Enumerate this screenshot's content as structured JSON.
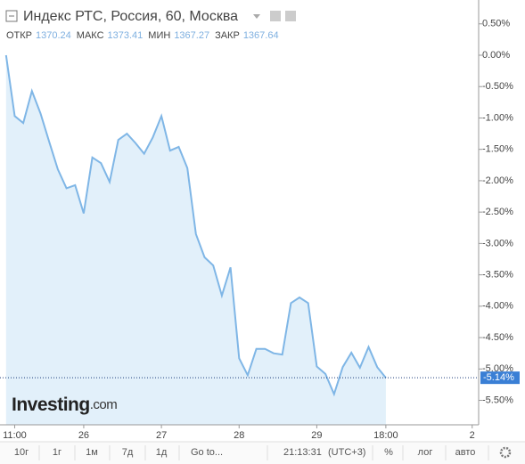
{
  "header": {
    "title": "Индекс РТС, Россия, 60, Москва",
    "ohlc": [
      {
        "label": "ОТКР",
        "value": 1370.24
      },
      {
        "label": "МАКС",
        "value": 1373.41
      },
      {
        "label": "МИН",
        "value": 1367.27
      },
      {
        "label": "ЗАКР",
        "value": 1367.64
      }
    ]
  },
  "logo": [
    "Investing",
    ".com"
  ],
  "chart_data": {
    "type": "area",
    "color": "#7fb6e6",
    "fill": "#e2f0fa",
    "values": [
      0.0,
      -0.97,
      -1.08,
      -0.57,
      -0.93,
      -1.38,
      -1.82,
      -2.12,
      -2.07,
      -2.52,
      -1.63,
      -1.72,
      -2.02,
      -1.35,
      -1.25,
      -1.4,
      -1.57,
      -1.31,
      -0.97,
      -1.52,
      -1.46,
      -1.8,
      -2.85,
      -3.22,
      -3.35,
      -3.83,
      -3.38,
      -4.83,
      -5.1,
      -4.68,
      -4.68,
      -4.75,
      -4.77,
      -3.95,
      -3.86,
      -3.95,
      -4.96,
      -5.08,
      -5.4,
      -4.97,
      -4.74,
      -4.98,
      -4.65,
      -4.97,
      -5.14
    ],
    "last_label": "-5.14%",
    "xlim": [
      -0.7,
      54.75
    ],
    "xticks": [
      {
        "value": 1,
        "label": "11:00"
      },
      {
        "value": 9,
        "label": "26"
      },
      {
        "value": 18,
        "label": "27"
      },
      {
        "value": 27,
        "label": "28"
      },
      {
        "value": 36,
        "label": "29"
      },
      {
        "value": 44,
        "label": "18:00"
      },
      {
        "value": 54,
        "label": "2"
      }
    ],
    "ylim": [
      -5.89,
      0.88
    ],
    "yticks": [
      {
        "value": 0.5,
        "label": "0.50%"
      },
      {
        "value": 0,
        "label": "0.00%"
      },
      {
        "value": -0.5,
        "label": "-0.50%"
      },
      {
        "value": -1,
        "label": "-1.00%"
      },
      {
        "value": -1.5,
        "label": "-1.50%"
      },
      {
        "value": -2,
        "label": "-2.00%"
      },
      {
        "value": -2.5,
        "label": "-2.50%"
      },
      {
        "value": -3,
        "label": "-3.00%"
      },
      {
        "value": -3.5,
        "label": "-3.50%"
      },
      {
        "value": -4,
        "label": "-4.00%"
      },
      {
        "value": -4.5,
        "label": "-4.50%"
      },
      {
        "value": -5,
        "label": "-5.00%"
      },
      {
        "value": -5.5,
        "label": "-5.50%"
      }
    ]
  },
  "toolbar": {
    "periods": [
      "10г",
      "1г",
      "1м",
      "7д",
      "1д"
    ],
    "goto": "Go to...",
    "time": "21:13:31",
    "tz": "(UTC+3)",
    "percent": "%",
    "log": "лог",
    "auto": "авто"
  }
}
